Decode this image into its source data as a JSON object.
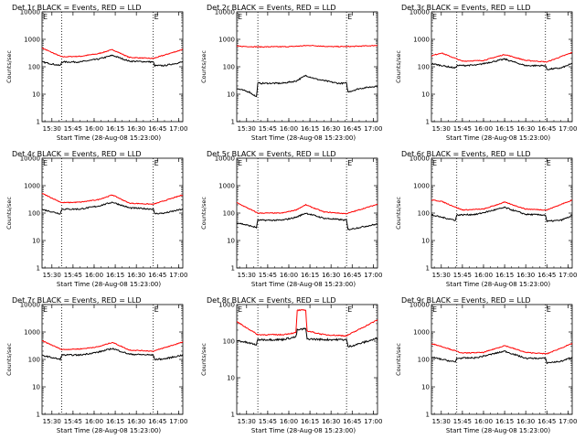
{
  "chart_data": [
    {
      "type": "line",
      "title": "Det 1r BLACK = Events, RED = LLD",
      "xlabel": "Start Time (28-Aug-08 15:23:00)",
      "ylabel": "Counts/sec",
      "yscale": "log",
      "ylim": [
        1,
        10000
      ],
      "yticks": [
        "1",
        "10",
        "100",
        "1000",
        "10000"
      ],
      "xticks": [
        "15:30",
        "15:45",
        "16:00",
        "16:15",
        "16:30",
        "16:45",
        "17:00"
      ],
      "x_range": [
        "15:23",
        "17:03"
      ],
      "vlines": [
        "15:37",
        "16:42"
      ],
      "corner_marks": [
        "E",
        "E"
      ],
      "grid": false,
      "legend": "none",
      "series": [
        {
          "color": "#ff0000",
          "x": [
            "15:23",
            "15:37",
            "15:50",
            "16:03",
            "16:13",
            "16:25",
            "16:42",
            "17:03"
          ],
          "y": [
            480,
            230,
            240,
            300,
            420,
            220,
            200,
            430
          ]
        },
        {
          "color": "#000000",
          "x": [
            "15:23",
            "15:36",
            "15:37",
            "15:50",
            "16:03",
            "16:13",
            "16:25",
            "16:42",
            "16:43",
            "16:50",
            "17:03"
          ],
          "y": [
            150,
            110,
            150,
            150,
            190,
            260,
            160,
            150,
            110,
            110,
            150
          ]
        }
      ]
    },
    {
      "type": "line",
      "title": "Det 2r BLACK = Events, RED = LLD",
      "xlabel": "Start Time (28-Aug-08 15:23:00)",
      "ylabel": "Counts/sec",
      "yscale": "log",
      "ylim": [
        1,
        10000
      ],
      "yticks": [
        "1",
        "10",
        "100",
        "1000",
        "10000"
      ],
      "xticks": [
        "15:30",
        "15:45",
        "16:00",
        "16:15",
        "16:30",
        "16:45",
        "17:00"
      ],
      "x_range": [
        "15:23",
        "17:03"
      ],
      "vlines": [
        "15:38",
        "16:41"
      ],
      "corner_marks": [
        "E",
        "E"
      ],
      "grid": false,
      "legend": "none",
      "series": [
        {
          "color": "#ff0000",
          "x": [
            "15:23",
            "15:40",
            "16:00",
            "16:15",
            "16:30",
            "16:45",
            "17:03"
          ],
          "y": [
            560,
            530,
            540,
            600,
            540,
            550,
            600
          ]
        },
        {
          "color": "#000000",
          "x": [
            "15:23",
            "15:32",
            "15:37",
            "15:38",
            "15:55",
            "16:05",
            "16:12",
            "16:20",
            "16:35",
            "16:41",
            "16:42",
            "16:50",
            "17:03"
          ],
          "y": [
            16,
            12,
            8,
            25,
            25,
            30,
            48,
            35,
            25,
            25,
            12,
            16,
            20
          ]
        }
      ]
    },
    {
      "type": "line",
      "title": "Det 3r BLACK = Events, RED = LLD",
      "xlabel": "Start Time (28-Aug-08 15:23:00)",
      "ylabel": "Counts/sec",
      "yscale": "log",
      "ylim": [
        1,
        10000
      ],
      "yticks": [
        "1",
        "10",
        "100",
        "1000",
        "10000"
      ],
      "xticks": [
        "15:30",
        "15:45",
        "16:00",
        "16:15",
        "16:30",
        "16:45",
        "17:00"
      ],
      "x_range": [
        "15:23",
        "17:03"
      ],
      "vlines": [
        "15:41",
        "16:44"
      ],
      "corner_marks": [
        "E",
        "E"
      ],
      "grid": false,
      "legend": "none",
      "series": [
        {
          "color": "#ff0000",
          "x": [
            "15:23",
            "15:30",
            "15:45",
            "16:00",
            "16:15",
            "16:30",
            "16:45",
            "17:03"
          ],
          "y": [
            250,
            320,
            160,
            170,
            280,
            170,
            150,
            330
          ]
        },
        {
          "color": "#000000",
          "x": [
            "15:23",
            "15:40",
            "15:41",
            "15:55",
            "16:15",
            "16:30",
            "16:44",
            "16:45",
            "16:55",
            "17:03"
          ],
          "y": [
            130,
            90,
            110,
            115,
            190,
            110,
            110,
            80,
            90,
            130
          ]
        }
      ]
    },
    {
      "type": "line",
      "title": "Det 4r BLACK = Events, RED = LLD",
      "xlabel": "Start Time (28-Aug-08 15:23:00)",
      "ylabel": "Counts/sec",
      "yscale": "log",
      "ylim": [
        1,
        10000
      ],
      "yticks": [
        "1",
        "10",
        "100",
        "1000",
        "10000"
      ],
      "xticks": [
        "15:30",
        "15:45",
        "16:00",
        "16:15",
        "16:30",
        "16:45",
        "17:00"
      ],
      "x_range": [
        "15:23",
        "17:03"
      ],
      "vlines": [
        "15:37",
        "16:42"
      ],
      "corner_marks": [
        "E",
        "E"
      ],
      "grid": false,
      "legend": "none",
      "series": [
        {
          "color": "#ff0000",
          "x": [
            "15:23",
            "15:37",
            "15:50",
            "16:03",
            "16:13",
            "16:25",
            "16:42",
            "17:03"
          ],
          "y": [
            520,
            240,
            250,
            310,
            460,
            230,
            210,
            460
          ]
        },
        {
          "color": "#000000",
          "x": [
            "15:23",
            "15:36",
            "15:37",
            "15:50",
            "16:03",
            "16:13",
            "16:25",
            "16:42",
            "16:43",
            "16:50",
            "17:03"
          ],
          "y": [
            135,
            95,
            140,
            140,
            180,
            250,
            155,
            140,
            95,
            100,
            140
          ]
        }
      ]
    },
    {
      "type": "line",
      "title": "Det 5r BLACK = Events, RED = LLD",
      "xlabel": "Start Time (28-Aug-08 15:23:00)",
      "ylabel": "Counts/sec",
      "yscale": "log",
      "ylim": [
        1,
        10000
      ],
      "yticks": [
        "1",
        "10",
        "100",
        "1000",
        "10000"
      ],
      "xticks": [
        "15:30",
        "15:45",
        "16:00",
        "16:15",
        "16:30",
        "16:45",
        "17:00"
      ],
      "x_range": [
        "15:23",
        "17:03"
      ],
      "vlines": [
        "15:38",
        "16:41"
      ],
      "corner_marks": [
        "E",
        "E"
      ],
      "grid": false,
      "legend": "none",
      "series": [
        {
          "color": "#ff0000",
          "x": [
            "15:23",
            "15:38",
            "15:55",
            "16:05",
            "16:12",
            "16:25",
            "16:41",
            "17:03"
          ],
          "y": [
            240,
            100,
            100,
            130,
            200,
            110,
            95,
            210
          ]
        },
        {
          "color": "#000000",
          "x": [
            "15:23",
            "15:37",
            "15:38",
            "15:55",
            "16:05",
            "16:12",
            "16:25",
            "16:41",
            "16:42",
            "16:50",
            "17:03"
          ],
          "y": [
            45,
            30,
            55,
            55,
            70,
            100,
            65,
            55,
            25,
            30,
            40
          ]
        }
      ]
    },
    {
      "type": "line",
      "title": "Det 6r BLACK = Events, RED = LLD",
      "xlabel": "Start Time (28-Aug-08 15:23:00)",
      "ylabel": "Counts/sec",
      "yscale": "log",
      "ylim": [
        1,
        10000
      ],
      "yticks": [
        "1",
        "10",
        "100",
        "1000",
        "10000"
      ],
      "xticks": [
        "15:30",
        "15:45",
        "16:00",
        "16:15",
        "16:30",
        "16:45",
        "17:00"
      ],
      "x_range": [
        "15:23",
        "17:03"
      ],
      "vlines": [
        "15:41",
        "16:44"
      ],
      "corner_marks": [
        "E",
        "E"
      ],
      "grid": false,
      "legend": "none",
      "series": [
        {
          "color": "#ff0000",
          "x": [
            "15:23",
            "15:30",
            "15:45",
            "16:00",
            "16:15",
            "16:30",
            "16:45",
            "17:03"
          ],
          "y": [
            300,
            270,
            130,
            140,
            250,
            140,
            130,
            300
          ]
        },
        {
          "color": "#000000",
          "x": [
            "15:23",
            "15:40",
            "15:41",
            "15:55",
            "16:15",
            "16:30",
            "16:44",
            "16:45",
            "16:55",
            "17:03"
          ],
          "y": [
            85,
            55,
            85,
            90,
            160,
            90,
            85,
            50,
            55,
            80
          ]
        }
      ]
    },
    {
      "type": "line",
      "title": "Det 7r BLACK = Events, RED = LLD",
      "xlabel": "Start Time (28-Aug-08 15:23:00)",
      "ylabel": "Counts/sec",
      "yscale": "log",
      "ylim": [
        1,
        10000
      ],
      "yticks": [
        "1",
        "10",
        "100",
        "1000",
        "10000"
      ],
      "xticks": [
        "15:30",
        "15:45",
        "16:00",
        "16:15",
        "16:30",
        "16:45",
        "17:00"
      ],
      "x_range": [
        "15:23",
        "17:03"
      ],
      "vlines": [
        "15:37",
        "16:42"
      ],
      "corner_marks": [
        "E",
        "E"
      ],
      "grid": false,
      "legend": "none",
      "series": [
        {
          "color": "#ff0000",
          "x": [
            "15:23",
            "15:37",
            "15:50",
            "16:03",
            "16:13",
            "16:25",
            "16:42",
            "17:03"
          ],
          "y": [
            480,
            230,
            240,
            290,
            420,
            220,
            200,
            430
          ]
        },
        {
          "color": "#000000",
          "x": [
            "15:23",
            "15:36",
            "15:37",
            "15:50",
            "16:03",
            "16:13",
            "16:25",
            "16:42",
            "16:43",
            "16:50",
            "17:03"
          ],
          "y": [
            140,
            100,
            145,
            145,
            185,
            250,
            155,
            145,
            100,
            105,
            145
          ]
        }
      ]
    },
    {
      "type": "line",
      "title": "Det 8r BLACK = Events, RED = LLD",
      "xlabel": "Start Time (28-Aug-08 15:23:00)",
      "ylabel": "Counts/sec",
      "yscale": "log",
      "ylim": [
        1,
        1000
      ],
      "yticks": [
        "1",
        "10",
        "100",
        "1000"
      ],
      "xticks": [
        "15:30",
        "15:45",
        "16:00",
        "16:15",
        "16:30",
        "16:45",
        "17:00"
      ],
      "x_range": [
        "15:23",
        "17:03"
      ],
      "vlines": [
        "15:38",
        "16:41"
      ],
      "corner_marks": [
        "E",
        "E"
      ],
      "grid": false,
      "legend": "none",
      "series": [
        {
          "color": "#ff0000",
          "x": [
            "15:23",
            "15:38",
            "15:55",
            "16:05",
            "16:06",
            "16:12",
            "16:13",
            "16:25",
            "16:41",
            "17:03"
          ],
          "y": [
            340,
            150,
            150,
            170,
            700,
            700,
            190,
            150,
            140,
            380
          ]
        },
        {
          "color": "#000000",
          "x": [
            "15:23",
            "15:37",
            "15:38",
            "15:55",
            "16:05",
            "16:06",
            "16:12",
            "16:13",
            "16:25",
            "16:41",
            "16:42",
            "16:50",
            "17:03"
          ],
          "y": [
            105,
            80,
            110,
            110,
            130,
            200,
            220,
            115,
            110,
            110,
            70,
            85,
            120
          ]
        }
      ]
    },
    {
      "type": "line",
      "title": "Det 9r BLACK = Events, RED = LLD",
      "xlabel": "Start Time (28-Aug-08 15:23:00)",
      "ylabel": "Counts/sec",
      "yscale": "log",
      "ylim": [
        1,
        10000
      ],
      "yticks": [
        "1",
        "10",
        "100",
        "1000",
        "10000"
      ],
      "xticks": [
        "15:30",
        "15:45",
        "16:00",
        "16:15",
        "16:30",
        "16:45",
        "17:00"
      ],
      "x_range": [
        "15:23",
        "17:03"
      ],
      "vlines": [
        "15:41",
        "16:44"
      ],
      "corner_marks": [
        "E",
        "E"
      ],
      "grid": false,
      "legend": "none",
      "series": [
        {
          "color": "#ff0000",
          "x": [
            "15:23",
            "15:30",
            "15:45",
            "16:00",
            "16:15",
            "16:30",
            "16:45",
            "17:03"
          ],
          "y": [
            380,
            300,
            170,
            180,
            320,
            180,
            160,
            380
          ]
        },
        {
          "color": "#000000",
          "x": [
            "15:23",
            "15:40",
            "15:41",
            "15:55",
            "16:15",
            "16:30",
            "16:44",
            "16:45",
            "16:55",
            "17:03"
          ],
          "y": [
            120,
            80,
            110,
            115,
            200,
            110,
            110,
            75,
            85,
            120
          ]
        }
      ]
    }
  ]
}
